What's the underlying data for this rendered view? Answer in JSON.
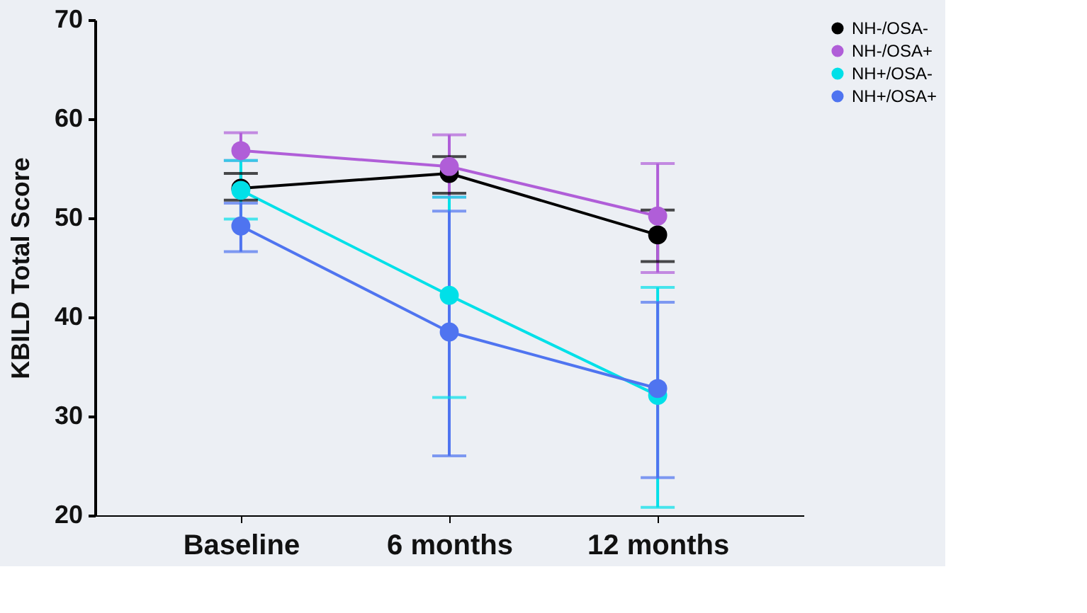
{
  "chart_data": {
    "type": "line",
    "ylabel": "KBILD Total Score",
    "categories": [
      "Baseline",
      "6 months",
      "12 months"
    ],
    "ylim": [
      20,
      70
    ],
    "yticks": [
      20,
      30,
      40,
      50,
      60,
      70
    ],
    "grid": false,
    "legend": "top right",
    "marker": "circle",
    "line_style": "solid",
    "series": [
      {
        "name": "NH-/OSA-",
        "color": "#000000",
        "values": [
          53.0,
          54.5,
          48.3
        ],
        "errors": [
          [
            51.8,
            54.5
          ],
          [
            52.5,
            56.2
          ],
          [
            45.6,
            50.8
          ]
        ]
      },
      {
        "name": "NH-/OSA+",
        "color": "#b05ed8",
        "values": [
          56.8,
          55.2,
          50.2
        ],
        "errors": [
          [
            55.8,
            58.6
          ],
          [
            52.1,
            58.4
          ],
          [
            44.5,
            55.5
          ]
        ]
      },
      {
        "name": "NH+/OSA-",
        "color": "#00e0e8",
        "values": [
          52.8,
          42.2,
          32.1
        ],
        "errors": [
          [
            49.9,
            55.8
          ],
          [
            31.9,
            52.1
          ],
          [
            20.8,
            43.0
          ]
        ]
      },
      {
        "name": "NH+/OSA+",
        "color": "#4f74f0",
        "values": [
          49.2,
          38.5,
          32.8
        ],
        "errors": [
          [
            46.6,
            51.5
          ],
          [
            26.0,
            50.7
          ],
          [
            23.8,
            41.5
          ]
        ]
      }
    ]
  }
}
